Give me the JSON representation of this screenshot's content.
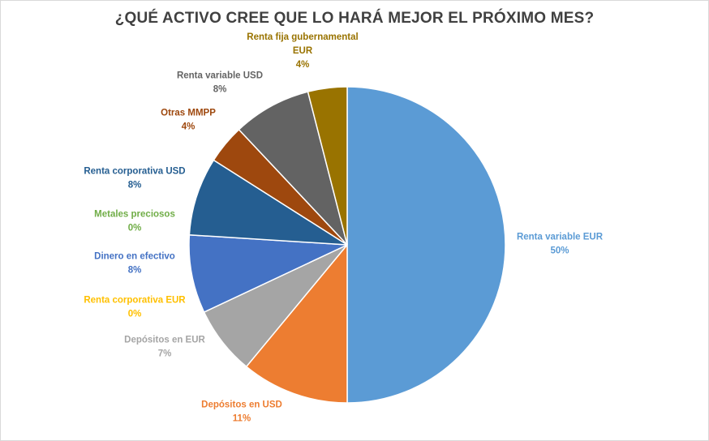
{
  "chart_data": {
    "type": "pie",
    "title": "¿QUÉ ACTIVO CREE QUE LO HARÁ MEJOR EL PRÓXIMO MES?",
    "slices": [
      {
        "name": "Renta variable EUR",
        "value": 50,
        "label": "50%",
        "color": "#5b9bd5"
      },
      {
        "name": "Depósitos en USD",
        "value": 11,
        "label": "11%",
        "color": "#ed7d31"
      },
      {
        "name": "Depósitos en EUR",
        "value": 7,
        "label": "7%",
        "color": "#a5a5a5"
      },
      {
        "name": "Renta corporativa EUR",
        "value": 0,
        "label": "0%",
        "color": "#ffc000"
      },
      {
        "name": "Dinero en efectivo",
        "value": 8,
        "label": "8%",
        "color": "#4472c4"
      },
      {
        "name": "Metales preciosos",
        "value": 0,
        "label": "0%",
        "color": "#70ad47"
      },
      {
        "name": "Renta corporativa USD",
        "value": 8,
        "label": "8%",
        "color": "#255e91"
      },
      {
        "name": "Otras MMPP",
        "value": 4,
        "label": "4%",
        "color": "#9e480e"
      },
      {
        "name": "Renta variable USD",
        "value": 8,
        "label": "8%",
        "color": "#636363"
      },
      {
        "name": "Renta fija gubernamental EUR",
        "value": 4,
        "label": "4%",
        "color": "#997300"
      }
    ]
  }
}
